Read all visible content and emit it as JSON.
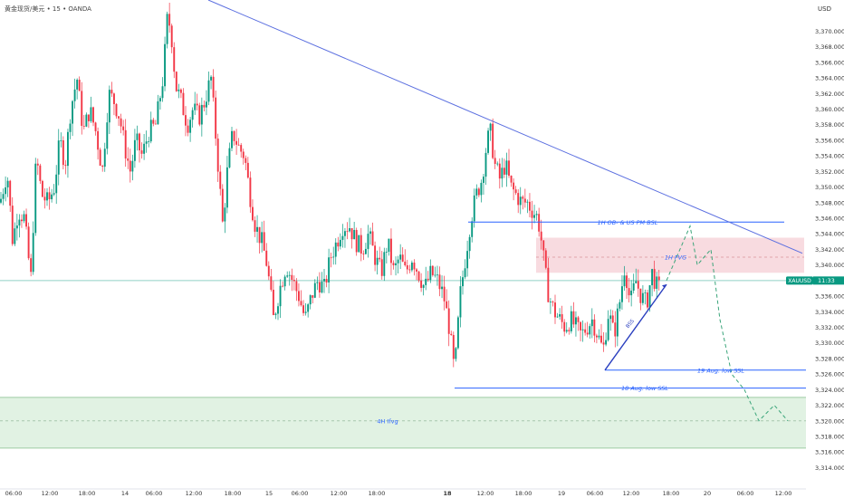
{
  "header": {
    "title": "黄金现货/美元 • 15 • OANDA",
    "currency": "USD"
  },
  "price_tag": {
    "symbol": "XAUUSD",
    "countdown": "11:33",
    "price": 3338.0,
    "bg_color": "#089981"
  },
  "colors": {
    "up": "#089981",
    "down": "#f23645",
    "trend": "#5b6fe0",
    "level": "#2962ff",
    "fvg_zone": "#f4c7cf",
    "ifvg_zone": "#d9efdc",
    "text_muted": "#787b86"
  },
  "chart_data": {
    "type": "candlestick",
    "title": "黄金现货/美元 • 15 • OANDA",
    "ylim": [
      3313,
      3374
    ],
    "y_ticks": [
      3314,
      3316,
      3318,
      3320,
      3322,
      3324,
      3326,
      3328,
      3330,
      3332,
      3334,
      3336,
      3338,
      3340,
      3342,
      3344,
      3346,
      3348,
      3350,
      3352,
      3354,
      3356,
      3358,
      3360,
      3362,
      3364,
      3366,
      3368,
      3370
    ],
    "x_ticks": [
      {
        "label": "06:00",
        "bold": false
      },
      {
        "label": "12:00",
        "bold": false
      },
      {
        "label": "18:00",
        "bold": false
      },
      {
        "label": "14",
        "bold": false
      },
      {
        "label": "06:00",
        "bold": false
      },
      {
        "label": "12:00",
        "bold": false
      },
      {
        "label": "18:00",
        "bold": false
      },
      {
        "label": "15",
        "bold": false
      },
      {
        "label": "06:00",
        "bold": false
      },
      {
        "label": "12:00",
        "bold": false
      },
      {
        "label": "18:00",
        "bold": false
      },
      {
        "label": "18",
        "bold": true
      },
      {
        "label": "12:00",
        "bold": false
      },
      {
        "label": "18:00",
        "bold": false
      },
      {
        "label": "19",
        "bold": false
      },
      {
        "label": "06:00",
        "bold": false
      },
      {
        "label": "12:00",
        "bold": false
      },
      {
        "label": "18:00",
        "bold": false
      },
      {
        "label": "20",
        "bold": false
      },
      {
        "label": "06:00",
        "bold": false
      },
      {
        "label": "12:00",
        "bold": false
      }
    ],
    "price_anchors": [
      [
        0,
        3348
      ],
      [
        8,
        3352
      ],
      [
        14,
        3343
      ],
      [
        20,
        3347
      ],
      [
        27,
        3346
      ],
      [
        34,
        3338
      ],
      [
        40,
        3354
      ],
      [
        46,
        3349
      ],
      [
        53,
        3348
      ],
      [
        60,
        3350
      ],
      [
        66,
        3356
      ],
      [
        72,
        3353
      ],
      [
        78,
        3360
      ],
      [
        85,
        3364
      ],
      [
        92,
        3357
      ],
      [
        99,
        3360
      ],
      [
        106,
        3357
      ],
      [
        113,
        3352
      ],
      [
        120,
        3362
      ],
      [
        126,
        3361
      ],
      [
        132,
        3359
      ],
      [
        138,
        3355
      ],
      [
        144,
        3352
      ],
      [
        150,
        3356
      ],
      [
        157,
        3354
      ],
      [
        164,
        3357
      ],
      [
        172,
        3358
      ],
      [
        180,
        3364
      ],
      [
        185,
        3372
      ],
      [
        189,
        3370
      ],
      [
        194,
        3363
      ],
      [
        200,
        3361
      ],
      [
        207,
        3358
      ],
      [
        213,
        3360
      ],
      [
        220,
        3359
      ],
      [
        226,
        3361
      ],
      [
        233,
        3364
      ],
      [
        240,
        3354
      ],
      [
        246,
        3345
      ],
      [
        251,
        3352
      ],
      [
        257,
        3357
      ],
      [
        264,
        3355
      ],
      [
        270,
        3354
      ],
      [
        276,
        3349
      ],
      [
        282,
        3345
      ],
      [
        289,
        3343
      ],
      [
        295,
        3340
      ],
      [
        302,
        3333
      ],
      [
        309,
        3337
      ],
      [
        316,
        3340
      ],
      [
        323,
        3338
      ],
      [
        330,
        3336
      ],
      [
        337,
        3333
      ],
      [
        344,
        3336
      ],
      [
        351,
        3338
      ],
      [
        358,
        3337
      ],
      [
        365,
        3341
      ],
      [
        372,
        3343
      ],
      [
        378,
        3345
      ],
      [
        386,
        3345
      ],
      [
        393,
        3343
      ],
      [
        400,
        3342
      ],
      [
        407,
        3344
      ],
      [
        414,
        3341
      ],
      [
        421,
        3339
      ],
      [
        428,
        3343
      ],
      [
        435,
        3339
      ],
      [
        441,
        3341
      ],
      [
        448,
        3339
      ],
      [
        455,
        3341
      ],
      [
        462,
        3339
      ],
      [
        469,
        3337
      ],
      [
        476,
        3339
      ],
      [
        483,
        3338
      ],
      [
        490,
        3336
      ],
      [
        496,
        3332
      ],
      [
        502,
        3326
      ],
      [
        508,
        3336
      ],
      [
        514,
        3341
      ],
      [
        520,
        3346
      ],
      [
        526,
        3349
      ],
      [
        532,
        3351
      ],
      [
        538,
        3356
      ],
      [
        542,
        3357
      ],
      [
        546,
        3353
      ],
      [
        552,
        3351
      ],
      [
        558,
        3353
      ],
      [
        564,
        3350
      ],
      [
        570,
        3349
      ],
      [
        576,
        3348
      ],
      [
        582,
        3348
      ],
      [
        588,
        3347
      ],
      [
        594,
        3346
      ],
      [
        598,
        3343
      ],
      [
        602,
        3339
      ],
      [
        606,
        3336
      ],
      [
        612,
        3334
      ],
      [
        618,
        3333
      ],
      [
        624,
        3332
      ],
      [
        630,
        3333
      ],
      [
        636,
        3332
      ],
      [
        642,
        3331
      ],
      [
        648,
        3332
      ],
      [
        654,
        3333
      ],
      [
        660,
        3331
      ],
      [
        666,
        3329
      ],
      [
        672,
        3334
      ],
      [
        678,
        3331
      ],
      [
        684,
        3335
      ],
      [
        690,
        3340
      ],
      [
        696,
        3335
      ],
      [
        702,
        3338
      ],
      [
        708,
        3336
      ],
      [
        714,
        3335
      ],
      [
        720,
        3339
      ],
      [
        726,
        3337
      ],
      [
        730,
        3337
      ]
    ],
    "last_price": 3338.0
  },
  "annotations": {
    "ob_label": "1H OB- & US PM BSL",
    "fvg_label": "1H FVG",
    "low19_label": "19 Aug. low SSL",
    "low18_label": "18 Aug. low SSL",
    "ifvg_label": "4H Ifvg",
    "bos_label": "BSS",
    "ob_level": 3345.5,
    "fvg_zone": [
      3339,
      3343.5
    ],
    "fvg_mid": 3341,
    "low19_level": 3326.5,
    "low18_level": 3324.2,
    "ifvg_zone": [
      3316.5,
      3323
    ],
    "ifvg_mid": 3320,
    "trendline": [
      [
        230,
        3374
      ],
      [
        886,
        3341.5
      ]
    ],
    "bss_line": [
      [
        668,
        3326.5
      ],
      [
        736,
        3337.5
      ]
    ],
    "projection": [
      [
        736,
        3338
      ],
      [
        762,
        3345
      ],
      [
        770,
        3340
      ],
      [
        785,
        3342
      ],
      [
        795,
        3333
      ],
      [
        808,
        3326
      ],
      [
        822,
        3324
      ],
      [
        838,
        3320
      ],
      [
        855,
        3322
      ],
      [
        870,
        3320
      ]
    ]
  }
}
